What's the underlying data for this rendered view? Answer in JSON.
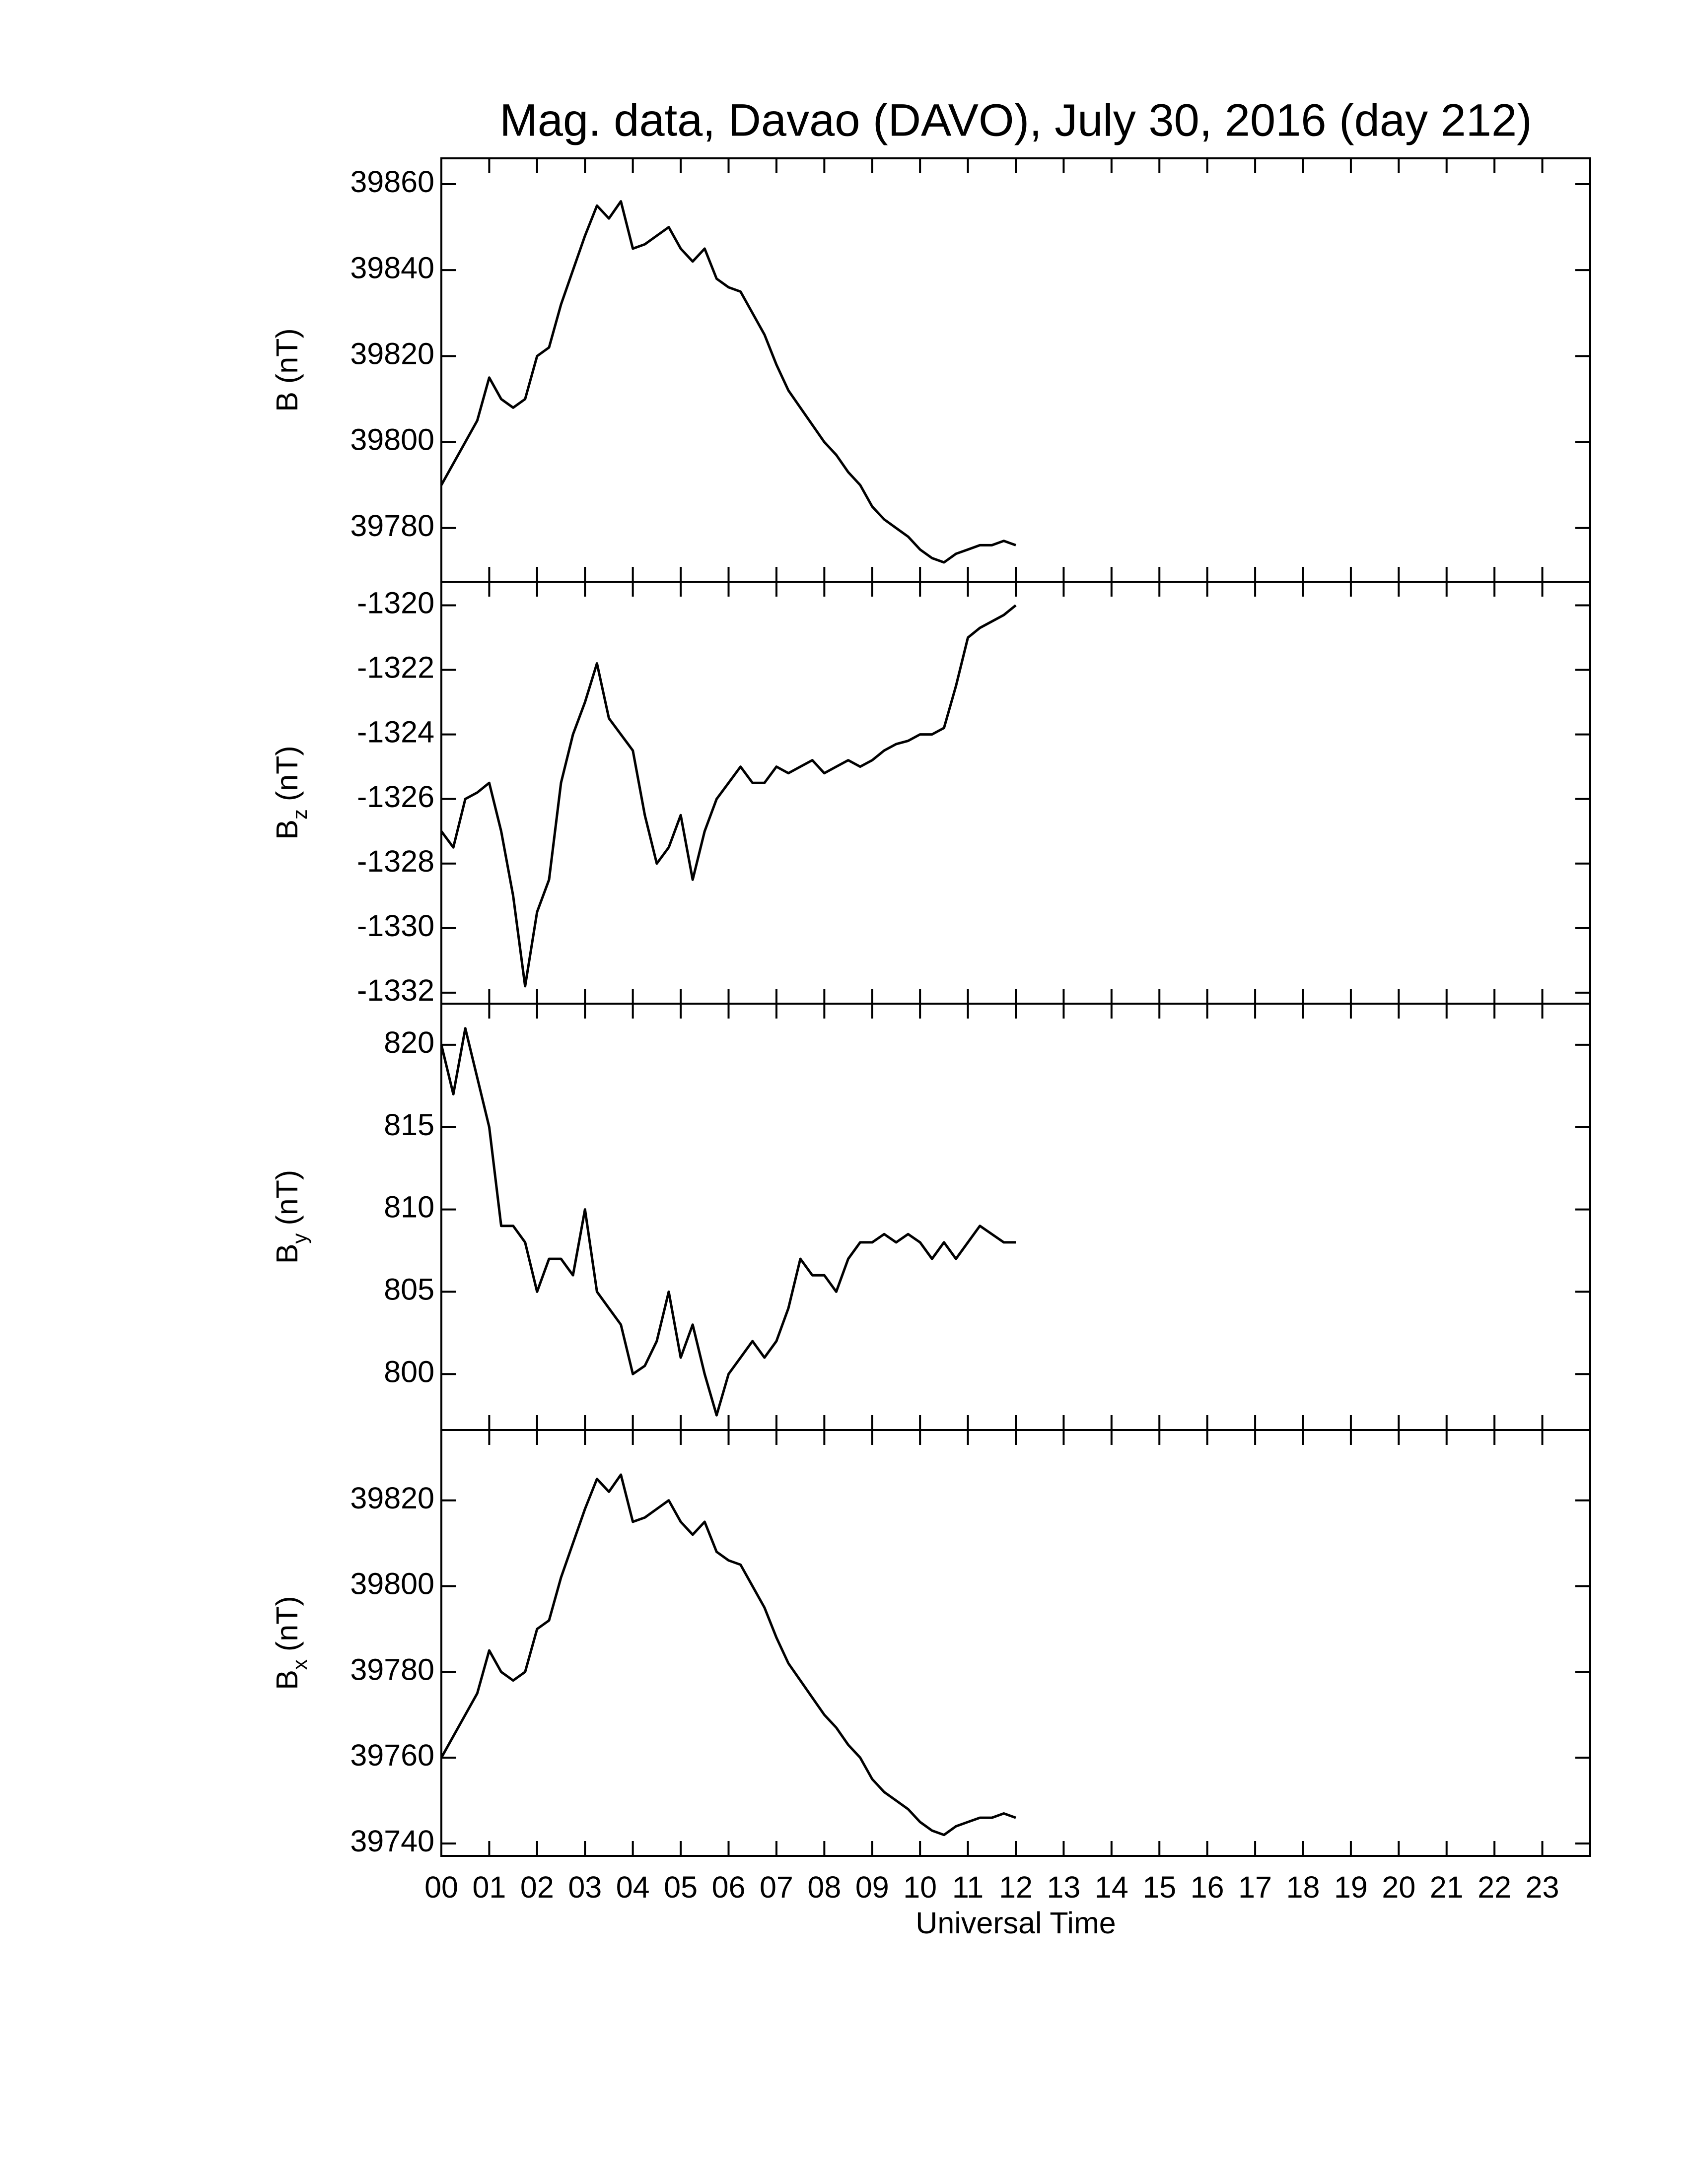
{
  "chart_data": [
    {
      "type": "line",
      "title": "Mag. data, Davao (DAVO), July 30, 2016 (day 212)",
      "ylabel": {
        "symbol": "B",
        "unit": "(nT)"
      },
      "color": "#000000",
      "xlim": [
        0,
        24
      ],
      "ylim": [
        39767.5,
        39866
      ],
      "yticks": [
        39780,
        39800,
        39820,
        39840,
        39860
      ],
      "x": [
        0,
        0.25,
        0.5,
        0.75,
        1,
        1.25,
        1.5,
        1.75,
        2,
        2.25,
        2.5,
        2.75,
        3,
        3.25,
        3.5,
        3.75,
        4,
        4.25,
        4.5,
        4.75,
        5,
        5.25,
        5.5,
        5.75,
        6,
        6.25,
        6.5,
        6.75,
        7,
        7.25,
        7.5,
        7.75,
        8,
        8.25,
        8.5,
        8.75,
        9,
        9.25,
        9.5,
        9.75,
        10,
        10.25,
        10.5,
        10.75,
        11,
        11.25,
        11.5,
        11.75,
        12
      ],
      "values": [
        39790,
        39795,
        39800,
        39805,
        39815,
        39810,
        39808,
        39810,
        39820,
        39822,
        39832,
        39840,
        39848,
        39855,
        39852,
        39856,
        39845,
        39846,
        39848,
        39850,
        39845,
        39842,
        39845,
        39838,
        39836,
        39835,
        39830,
        39825,
        39818,
        39812,
        39808,
        39804,
        39800,
        39797,
        39793,
        39790,
        39785,
        39782,
        39780,
        39778,
        39775,
        39773,
        39772,
        39774,
        39775,
        39776,
        39776,
        39777,
        39776
      ]
    },
    {
      "type": "line",
      "ylabel": {
        "symbol": "B",
        "subscript": "z",
        "unit": "(nT)"
      },
      "color": "#000000",
      "xlim": [
        0,
        24
      ],
      "ylim": [
        -1332.34,
        -1319.27
      ],
      "yticks": [
        -1332,
        -1330,
        -1328,
        -1326,
        -1324,
        -1322,
        -1320
      ],
      "x": [
        0,
        0.25,
        0.5,
        0.75,
        1,
        1.25,
        1.5,
        1.75,
        2,
        2.25,
        2.5,
        2.75,
        3,
        3.25,
        3.5,
        3.75,
        4,
        4.25,
        4.5,
        4.75,
        5,
        5.25,
        5.5,
        5.75,
        6,
        6.25,
        6.5,
        6.75,
        7,
        7.25,
        7.5,
        7.75,
        8,
        8.25,
        8.5,
        8.75,
        9,
        9.25,
        9.5,
        9.75,
        10,
        10.25,
        10.5,
        10.75,
        11,
        11.25,
        11.5,
        11.75,
        12
      ],
      "values": [
        -1327,
        -1327.5,
        -1326,
        -1325.8,
        -1325.5,
        -1327,
        -1329,
        -1331.8,
        -1329.5,
        -1328.5,
        -1325.5,
        -1324,
        -1323,
        -1321.8,
        -1323.5,
        -1324,
        -1324.5,
        -1326.5,
        -1328,
        -1327.5,
        -1326.5,
        -1328.5,
        -1327,
        -1326,
        -1325.5,
        -1325,
        -1325.5,
        -1325.5,
        -1325,
        -1325.2,
        -1325,
        -1324.8,
        -1325.2,
        -1325,
        -1324.8,
        -1325,
        -1324.8,
        -1324.5,
        -1324.3,
        -1324.2,
        -1324,
        -1324,
        -1323.8,
        -1322.5,
        -1321,
        -1320.7,
        -1320.5,
        -1320.3,
        -1320
      ]
    },
    {
      "type": "line",
      "ylabel": {
        "symbol": "B",
        "subscript": "y",
        "unit": "(nT)"
      },
      "color": "#000000",
      "xlim": [
        0,
        24
      ],
      "ylim": [
        796.6,
        822.5
      ],
      "yticks": [
        800,
        805,
        810,
        815,
        820
      ],
      "x": [
        0,
        0.25,
        0.5,
        0.75,
        1,
        1.25,
        1.5,
        1.75,
        2,
        2.25,
        2.5,
        2.75,
        3,
        3.25,
        3.5,
        3.75,
        4,
        4.25,
        4.5,
        4.75,
        5,
        5.25,
        5.5,
        5.75,
        6,
        6.25,
        6.5,
        6.75,
        7,
        7.25,
        7.5,
        7.75,
        8,
        8.25,
        8.5,
        8.75,
        9,
        9.25,
        9.5,
        9.75,
        10,
        10.25,
        10.5,
        10.75,
        11,
        11.25,
        11.5,
        11.75,
        12
      ],
      "values": [
        820,
        817,
        821,
        818,
        815,
        809,
        809,
        808,
        805,
        807,
        807,
        806,
        810,
        805,
        804,
        803,
        800,
        800.5,
        802,
        805,
        801,
        803,
        800,
        797.5,
        800,
        801,
        802,
        801,
        802,
        804,
        807,
        806,
        806,
        805,
        807,
        808,
        808,
        808.5,
        808,
        808.5,
        808,
        807,
        808,
        807,
        808,
        809,
        808.5,
        808,
        808
      ]
    },
    {
      "type": "line",
      "ylabel": {
        "symbol": "B",
        "subscript": "x",
        "unit": "(nT)"
      },
      "xlabel": "Universal Time",
      "color": "#000000",
      "xlim": [
        0,
        24
      ],
      "ylim": [
        39737.1,
        39836.4
      ],
      "yticks": [
        39740,
        39760,
        39780,
        39800,
        39820
      ],
      "xticks": [
        {
          "value": 0,
          "label": "00"
        },
        {
          "value": 1,
          "label": "01"
        },
        {
          "value": 2,
          "label": "02"
        },
        {
          "value": 3,
          "label": "03"
        },
        {
          "value": 4,
          "label": "04"
        },
        {
          "value": 5,
          "label": "05"
        },
        {
          "value": 6,
          "label": "06"
        },
        {
          "value": 7,
          "label": "07"
        },
        {
          "value": 8,
          "label": "08"
        },
        {
          "value": 9,
          "label": "09"
        },
        10,
        11,
        12,
        13,
        14,
        15,
        16,
        17,
        18,
        19,
        20,
        21,
        22,
        23
      ],
      "x": [
        0,
        0.25,
        0.5,
        0.75,
        1,
        1.25,
        1.5,
        1.75,
        2,
        2.25,
        2.5,
        2.75,
        3,
        3.25,
        3.5,
        3.75,
        4,
        4.25,
        4.5,
        4.75,
        5,
        5.25,
        5.5,
        5.75,
        6,
        6.25,
        6.5,
        6.75,
        7,
        7.25,
        7.5,
        7.75,
        8,
        8.25,
        8.5,
        8.75,
        9,
        9.25,
        9.5,
        9.75,
        10,
        10.25,
        10.5,
        10.75,
        11,
        11.25,
        11.5,
        11.75,
        12
      ],
      "values": [
        39760,
        39765,
        39770,
        39775,
        39785,
        39780,
        39778,
        39780,
        39790,
        39792,
        39802,
        39810,
        39818,
        39825,
        39822,
        39826,
        39815,
        39816,
        39818,
        39820,
        39815,
        39812,
        39815,
        39808,
        39806,
        39805,
        39800,
        39795,
        39788,
        39782,
        39778,
        39774,
        39770,
        39767,
        39763,
        39760,
        39755,
        39752,
        39750,
        39748,
        39745,
        39743,
        39742,
        39744,
        39745,
        39746,
        39746,
        39747,
        39746
      ]
    }
  ]
}
